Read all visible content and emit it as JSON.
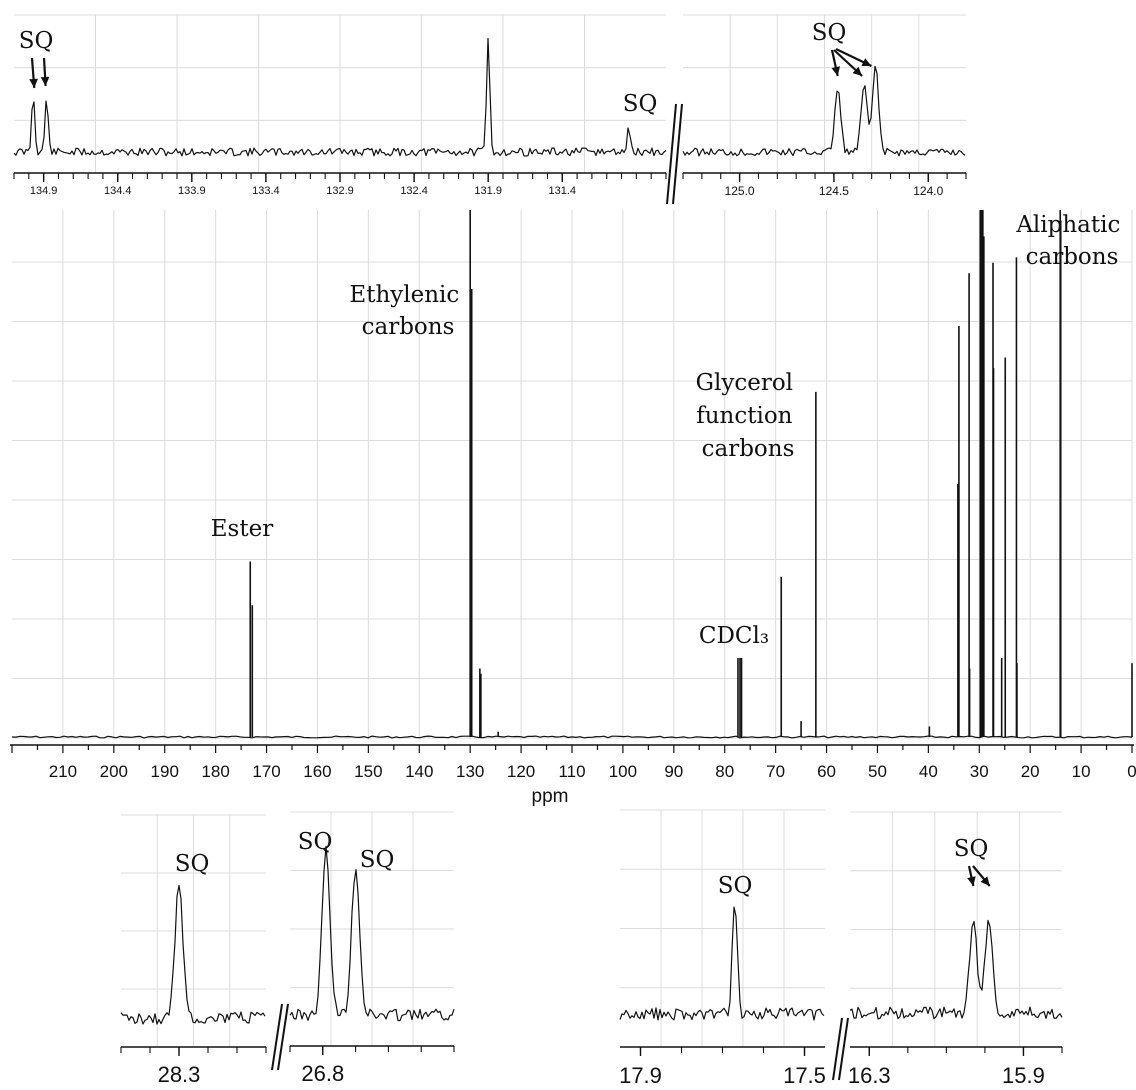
{
  "chart_data": [
    {
      "id": "main",
      "type": "line",
      "title": "",
      "xlabel": "ppm",
      "ylabel": "",
      "x_reversed": true,
      "xlim": [
        220,
        0
      ],
      "x_ticks": [
        210,
        200,
        190,
        180,
        170,
        160,
        150,
        140,
        130,
        120,
        110,
        100,
        90,
        80,
        70,
        60,
        50,
        40,
        30,
        20,
        10,
        0
      ],
      "grid": true,
      "peaks": [
        {
          "ppm": 173.2,
          "height": 0.333
        },
        {
          "ppm": 172.8,
          "height": 0.25
        },
        {
          "ppm": 130.0,
          "height": 1.0
        },
        {
          "ppm": 129.7,
          "height": 0.85
        },
        {
          "ppm": 129.8,
          "height": 0.2
        },
        {
          "ppm": 128.1,
          "height": 0.13
        },
        {
          "ppm": 127.9,
          "height": 0.12
        },
        {
          "ppm": 124.5,
          "height": 0.01
        },
        {
          "ppm": 77.4,
          "height": 0.15
        },
        {
          "ppm": 77.0,
          "height": 0.15
        },
        {
          "ppm": 76.7,
          "height": 0.15
        },
        {
          "ppm": 68.9,
          "height": 0.304
        },
        {
          "ppm": 65.0,
          "height": 0.03
        },
        {
          "ppm": 62.1,
          "height": 0.655
        },
        {
          "ppm": 39.8,
          "height": 0.02
        },
        {
          "ppm": 34.2,
          "height": 0.48
        },
        {
          "ppm": 34.0,
          "height": 0.78
        },
        {
          "ppm": 32.0,
          "height": 0.88
        },
        {
          "ppm": 31.9,
          "height": 0.13
        },
        {
          "ppm": 29.8,
          "height": 1.0
        },
        {
          "ppm": 29.5,
          "height": 1.0
        },
        {
          "ppm": 29.3,
          "height": 1.0
        },
        {
          "ppm": 29.1,
          "height": 0.95
        },
        {
          "ppm": 27.3,
          "height": 0.9
        },
        {
          "ppm": 27.2,
          "height": 0.7
        },
        {
          "ppm": 25.6,
          "height": 0.15
        },
        {
          "ppm": 24.9,
          "height": 0.72
        },
        {
          "ppm": 22.7,
          "height": 0.91
        },
        {
          "ppm": 22.6,
          "height": 0.14
        },
        {
          "ppm": 14.1,
          "height": 1.0
        },
        {
          "ppm": 14.0,
          "height": 0.98
        },
        {
          "ppm": 0.0,
          "height": 0.14
        }
      ],
      "annotations": [
        {
          "text": "Ester",
          "ppm": 173
        },
        {
          "text": "Ethylenic carbons",
          "ppm": 130
        },
        {
          "text": "CDCl₃",
          "ppm": 77
        },
        {
          "text": "Glycerol function carbons",
          "ppm": 62
        },
        {
          "text": "Aliphatic carbons",
          "ppm": 14
        }
      ]
    },
    {
      "id": "inset-top-left",
      "type": "line",
      "xlim": [
        135.1,
        130.7
      ],
      "x_reversed": true,
      "x_ticks": [
        134.9,
        134.4,
        133.9,
        133.4,
        132.9,
        132.4,
        131.9,
        131.4
      ],
      "peaks": [
        {
          "ppm": 134.97,
          "height": 0.45,
          "label": "SQ"
        },
        {
          "ppm": 134.88,
          "height": 0.43,
          "label": "SQ"
        },
        {
          "ppm": 131.9,
          "height": 0.9
        },
        {
          "ppm": 130.95,
          "height": 0.19,
          "label": "SQ"
        }
      ]
    },
    {
      "id": "inset-top-right",
      "type": "line",
      "xlim": [
        125.3,
        123.8
      ],
      "x_reversed": true,
      "x_ticks": [
        125.0,
        124.5,
        124.0
      ],
      "peaks": [
        {
          "ppm": 124.48,
          "height": 0.5,
          "label": "SQ"
        },
        {
          "ppm": 124.34,
          "height": 0.53,
          "label": "SQ"
        },
        {
          "ppm": 124.28,
          "height": 0.68,
          "label": "SQ"
        }
      ]
    },
    {
      "id": "inset-bottom-1",
      "type": "line",
      "xlim": [
        28.5,
        28.0
      ],
      "x_reversed": true,
      "x_ticks": [
        28.3
      ],
      "peaks": [
        {
          "ppm": 28.3,
          "height": 0.7,
          "label": "SQ"
        }
      ]
    },
    {
      "id": "inset-bottom-2",
      "type": "line",
      "xlim": [
        26.9,
        26.4
      ],
      "x_reversed": true,
      "x_ticks": [
        26.8
      ],
      "peaks": [
        {
          "ppm": 26.79,
          "height": 0.88,
          "label": "SQ"
        },
        {
          "ppm": 26.7,
          "height": 0.8,
          "label": "SQ"
        }
      ]
    },
    {
      "id": "inset-bottom-3",
      "type": "line",
      "xlim": [
        17.95,
        17.45
      ],
      "x_reversed": true,
      "x_ticks": [
        17.9,
        17.5
      ],
      "peaks": [
        {
          "ppm": 17.67,
          "height": 0.6,
          "label": "SQ"
        }
      ]
    },
    {
      "id": "inset-bottom-4",
      "type": "line",
      "xlim": [
        16.35,
        15.8
      ],
      "x_reversed": true,
      "x_ticks": [
        16.3,
        15.9
      ],
      "peaks": [
        {
          "ppm": 16.03,
          "height": 0.5,
          "label": "SQ"
        },
        {
          "ppm": 15.99,
          "height": 0.5
        }
      ]
    }
  ]
}
